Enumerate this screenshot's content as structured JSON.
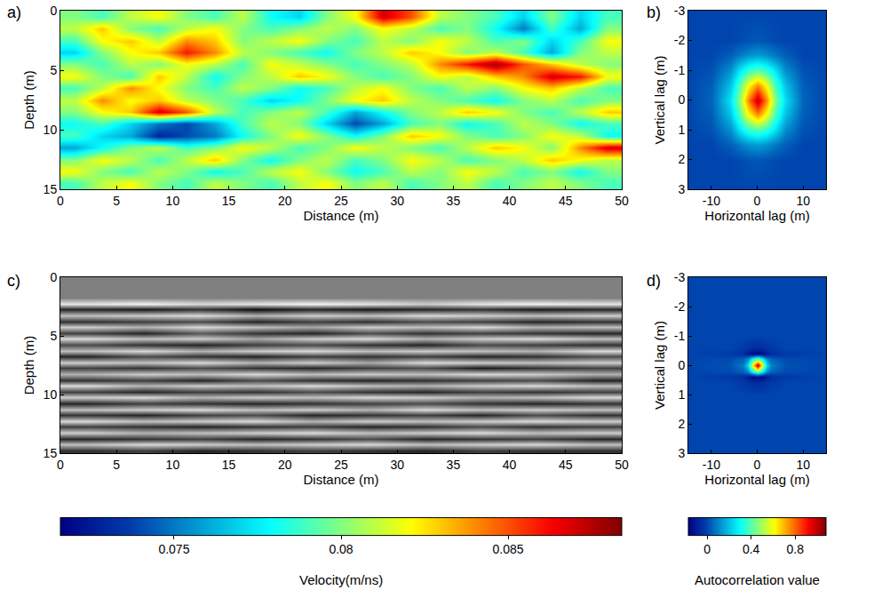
{
  "chart_data": [
    {
      "type": "heatmap",
      "panel_label": "a)",
      "x_label": "Distance (m)",
      "y_label": "Depth (m)",
      "xlim": [
        0,
        50
      ],
      "xticks": [
        0,
        5,
        10,
        15,
        20,
        25,
        30,
        35,
        40,
        45,
        50
      ],
      "ylim": [
        15,
        0
      ],
      "yticks": [
        0,
        5,
        10,
        15
      ],
      "color": "jet",
      "x": [
        1.25,
        3.75,
        6.25,
        8.75,
        11.25,
        13.75,
        16.25,
        18.75,
        21.25,
        23.75,
        26.25,
        28.75,
        31.25,
        33.75,
        36.25,
        38.75,
        41.25,
        43.75,
        46.25,
        48.75
      ],
      "y": [
        0.5,
        1.5,
        2.5,
        3.5,
        4.5,
        5.5,
        6.5,
        7.5,
        8.5,
        9.5,
        10.5,
        11.5,
        12.5,
        13.5,
        14.5
      ],
      "z": [
        [
          0.08,
          0.079,
          0.081,
          0.082,
          0.08,
          0.079,
          0.081,
          0.078,
          0.077,
          0.08,
          0.082,
          0.087,
          0.085,
          0.081,
          0.08,
          0.079,
          0.077,
          0.08,
          0.077,
          0.079
        ],
        [
          0.081,
          0.083,
          0.08,
          0.079,
          0.081,
          0.082,
          0.08,
          0.079,
          0.08,
          0.081,
          0.08,
          0.082,
          0.081,
          0.079,
          0.08,
          0.078,
          0.075,
          0.079,
          0.076,
          0.08
        ],
        [
          0.079,
          0.082,
          0.083,
          0.081,
          0.084,
          0.083,
          0.08,
          0.081,
          0.082,
          0.08,
          0.079,
          0.081,
          0.08,
          0.082,
          0.081,
          0.079,
          0.08,
          0.077,
          0.079,
          0.082
        ],
        [
          0.077,
          0.08,
          0.082,
          0.083,
          0.086,
          0.084,
          0.081,
          0.08,
          0.079,
          0.078,
          0.08,
          0.081,
          0.083,
          0.082,
          0.08,
          0.081,
          0.079,
          0.076,
          0.08,
          0.081
        ],
        [
          0.08,
          0.079,
          0.081,
          0.08,
          0.082,
          0.081,
          0.079,
          0.082,
          0.081,
          0.08,
          0.079,
          0.08,
          0.081,
          0.084,
          0.086,
          0.088,
          0.085,
          0.083,
          0.081,
          0.08
        ],
        [
          0.082,
          0.08,
          0.079,
          0.083,
          0.081,
          0.078,
          0.08,
          0.081,
          0.083,
          0.082,
          0.08,
          0.079,
          0.08,
          0.082,
          0.081,
          0.083,
          0.084,
          0.087,
          0.086,
          0.082
        ],
        [
          0.079,
          0.081,
          0.084,
          0.082,
          0.08,
          0.079,
          0.081,
          0.08,
          0.078,
          0.079,
          0.081,
          0.082,
          0.08,
          0.079,
          0.081,
          0.08,
          0.082,
          0.083,
          0.081,
          0.079
        ],
        [
          0.081,
          0.084,
          0.082,
          0.083,
          0.081,
          0.08,
          0.079,
          0.077,
          0.078,
          0.08,
          0.082,
          0.083,
          0.081,
          0.08,
          0.079,
          0.078,
          0.08,
          0.081,
          0.079,
          0.08
        ],
        [
          0.08,
          0.082,
          0.083,
          0.087,
          0.085,
          0.081,
          0.079,
          0.08,
          0.081,
          0.079,
          0.076,
          0.078,
          0.08,
          0.081,
          0.083,
          0.082,
          0.08,
          0.079,
          0.081,
          0.083
        ],
        [
          0.078,
          0.079,
          0.077,
          0.075,
          0.074,
          0.076,
          0.079,
          0.081,
          0.08,
          0.077,
          0.074,
          0.076,
          0.079,
          0.08,
          0.078,
          0.079,
          0.081,
          0.08,
          0.078,
          0.079
        ],
        [
          0.079,
          0.077,
          0.076,
          0.073,
          0.074,
          0.075,
          0.078,
          0.08,
          0.082,
          0.08,
          0.078,
          0.08,
          0.083,
          0.082,
          0.08,
          0.079,
          0.08,
          0.082,
          0.081,
          0.078
        ],
        [
          0.076,
          0.078,
          0.08,
          0.081,
          0.079,
          0.08,
          0.082,
          0.081,
          0.079,
          0.08,
          0.082,
          0.081,
          0.08,
          0.079,
          0.081,
          0.083,
          0.082,
          0.08,
          0.084,
          0.087
        ],
        [
          0.08,
          0.082,
          0.081,
          0.079,
          0.081,
          0.083,
          0.08,
          0.078,
          0.08,
          0.081,
          0.079,
          0.08,
          0.082,
          0.081,
          0.079,
          0.08,
          0.081,
          0.083,
          0.082,
          0.081
        ],
        [
          0.082,
          0.08,
          0.079,
          0.081,
          0.08,
          0.078,
          0.079,
          0.081,
          0.082,
          0.08,
          0.078,
          0.079,
          0.081,
          0.08,
          0.082,
          0.081,
          0.079,
          0.08,
          0.078,
          0.08
        ],
        [
          0.079,
          0.081,
          0.082,
          0.08,
          0.079,
          0.081,
          0.08,
          0.079,
          0.081,
          0.082,
          0.08,
          0.081,
          0.079,
          0.08,
          0.081,
          0.079,
          0.08,
          0.081,
          0.08,
          0.079
        ]
      ],
      "zlim": [
        0.0716,
        0.0884
      ],
      "colorbar": {
        "title": "Velocity(m/ns)",
        "ticks": [
          0.075,
          0.08,
          0.085
        ]
      }
    },
    {
      "type": "heatmap",
      "panel_label": "b)",
      "x_label": "Horizontal lag (m)",
      "y_label": "Vertical lag (m)",
      "xlim": [
        -15,
        15
      ],
      "xticks": [
        -10,
        0,
        10
      ],
      "ylim": [
        3,
        -3
      ],
      "yticks": [
        -3,
        -2,
        -1,
        0,
        1,
        2,
        3
      ],
      "color": "jet",
      "x": [
        -15,
        -10,
        -6,
        -4,
        -2,
        0,
        2,
        4,
        6,
        10,
        15
      ],
      "y": [
        -3,
        -2,
        -1.5,
        -1,
        -0.5,
        0,
        0.5,
        1,
        1.5,
        2,
        3
      ],
      "z": [
        [
          0,
          0,
          0,
          0,
          0,
          0,
          0,
          0,
          0,
          0,
          0
        ],
        [
          0,
          0,
          0,
          0.01,
          0.02,
          0.03,
          0.02,
          0.01,
          0,
          0,
          0
        ],
        [
          0,
          0,
          0.04,
          0.08,
          0.12,
          0.14,
          0.12,
          0.08,
          0.04,
          0,
          0
        ],
        [
          0,
          0.02,
          0.12,
          0.25,
          0.35,
          0.4,
          0.35,
          0.25,
          0.12,
          0.02,
          0
        ],
        [
          0,
          0.04,
          0.2,
          0.38,
          0.6,
          0.75,
          0.6,
          0.38,
          0.2,
          0.04,
          0
        ],
        [
          0,
          0.05,
          0.25,
          0.45,
          0.75,
          1,
          0.75,
          0.45,
          0.25,
          0.05,
          0
        ],
        [
          0,
          0.04,
          0.2,
          0.38,
          0.6,
          0.75,
          0.6,
          0.38,
          0.2,
          0.04,
          0
        ],
        [
          0,
          0.02,
          0.12,
          0.25,
          0.35,
          0.4,
          0.35,
          0.25,
          0.12,
          0.02,
          0
        ],
        [
          0,
          0,
          0.04,
          0.08,
          0.12,
          0.14,
          0.12,
          0.08,
          0.04,
          0,
          0
        ],
        [
          0,
          0,
          0,
          0.01,
          0.02,
          0.03,
          0.02,
          0.01,
          0,
          0,
          0
        ],
        [
          0,
          0,
          0,
          0,
          0,
          0,
          0,
          0,
          0,
          0,
          0
        ]
      ],
      "zlim": [
        -0.17,
        1.08
      ]
    },
    {
      "type": "heatmap",
      "panel_label": "c)",
      "x_label": "Distance (m)",
      "y_label": "Depth (m)",
      "xlim": [
        0,
        50
      ],
      "xticks": [
        0,
        5,
        10,
        15,
        20,
        25,
        30,
        35,
        40,
        45,
        50
      ],
      "ylim": [
        15,
        0
      ],
      "yticks": [
        0,
        5,
        10,
        15
      ],
      "color": "gray",
      "x": [
        2.5,
        7.5,
        12.5,
        17.5,
        22.5,
        27.5,
        32.5,
        37.5,
        42.5,
        47.5
      ],
      "y": [
        0.25,
        0.75,
        1.25,
        1.75,
        2.25,
        2.75,
        3.25,
        3.75,
        4.25,
        4.75,
        5.25,
        5.75,
        6.25,
        6.75,
        7.25,
        7.75,
        8.25,
        8.75,
        9.25,
        9.75,
        10.25,
        10.75,
        11.25,
        11.75,
        12.25,
        12.75,
        13.25,
        13.75,
        14.25,
        14.75
      ],
      "z": [
        [
          0,
          0,
          0,
          0,
          0,
          0,
          0,
          0,
          0,
          0
        ],
        [
          0,
          0,
          0,
          0,
          0,
          0,
          0,
          0,
          0,
          0
        ],
        [
          0,
          0,
          0,
          0,
          0,
          0,
          0,
          0,
          0,
          0
        ],
        [
          0,
          0,
          0,
          0,
          0,
          0,
          0,
          0,
          0,
          0
        ],
        [
          0.8,
          0.9,
          0.7,
          0.8,
          0.9,
          0.8,
          0.6,
          0.8,
          0.9,
          0.8
        ],
        [
          -0.7,
          -0.8,
          -0.6,
          -0.9,
          -0.7,
          -0.8,
          -0.7,
          -0.6,
          -0.8,
          -0.7
        ],
        [
          0.5,
          0.6,
          0.7,
          0.4,
          0.6,
          0.5,
          0.7,
          0.6,
          0.5,
          0.6
        ],
        [
          -0.6,
          -0.5,
          -0.4,
          -0.7,
          -0.5,
          -0.6,
          -0.4,
          -0.5,
          -0.7,
          -0.6
        ],
        [
          0.6,
          0.4,
          0.7,
          0.5,
          0.3,
          0.6,
          0.5,
          0.7,
          0.4,
          0.5
        ],
        [
          -0.5,
          -0.7,
          -0.3,
          -0.6,
          -0.7,
          -0.4,
          -0.6,
          -0.5,
          -0.6,
          -0.7
        ],
        [
          0.7,
          0.5,
          0.6,
          0.3,
          0.6,
          0.7,
          0.4,
          0.6,
          0.7,
          0.5
        ],
        [
          -0.4,
          -0.6,
          -0.7,
          -0.5,
          -0.4,
          -0.6,
          -0.7,
          -0.4,
          -0.5,
          -0.6
        ],
        [
          0.5,
          0.7,
          0.4,
          0.6,
          0.7,
          0.5,
          0.6,
          0.5,
          0.4,
          0.7
        ],
        [
          -0.7,
          -0.4,
          -0.6,
          -0.7,
          -0.5,
          -0.6,
          -0.5,
          -0.7,
          -0.6,
          -0.4
        ],
        [
          0.6,
          0.5,
          0.7,
          0.4,
          0.6,
          0.3,
          0.7,
          0.6,
          0.5,
          0.6
        ],
        [
          -0.5,
          -0.6,
          -0.4,
          -0.6,
          -0.7,
          -0.5,
          -0.4,
          -0.8,
          -0.6,
          -0.5
        ],
        [
          0.4,
          0.6,
          0.5,
          0.7,
          0.5,
          0.6,
          0.5,
          0.7,
          0.6,
          0.4
        ],
        [
          -0.6,
          -0.5,
          -0.7,
          -0.4,
          -0.6,
          -0.7,
          -0.6,
          -0.5,
          -0.4,
          -0.7
        ],
        [
          0.7,
          0.4,
          0.6,
          0.5,
          0.7,
          0.5,
          0.4,
          0.6,
          0.7,
          0.5
        ],
        [
          -0.5,
          -0.7,
          -0.5,
          -0.6,
          -0.4,
          -0.6,
          -0.7,
          -0.5,
          -0.6,
          -0.5
        ],
        [
          0.6,
          0.7,
          0.4,
          0.6,
          0.5,
          0.7,
          0.6,
          0.4,
          0.5,
          0.7
        ],
        [
          -0.7,
          -0.5,
          -0.6,
          -0.7,
          -0.6,
          -0.5,
          -0.4,
          -0.6,
          -0.7,
          -0.6
        ],
        [
          0.5,
          0.6,
          0.7,
          0.5,
          0.6,
          0.4,
          0.7,
          0.5,
          0.6,
          0.5
        ],
        [
          -0.6,
          -0.7,
          -0.5,
          -0.4,
          -0.7,
          -0.6,
          -0.5,
          -0.7,
          -0.4,
          -0.6
        ],
        [
          0.7,
          0.5,
          0.6,
          0.7,
          0.4,
          0.6,
          0.5,
          0.6,
          0.7,
          0.6
        ],
        [
          -0.5,
          -0.6,
          -0.7,
          -0.6,
          -0.5,
          -0.7,
          -0.6,
          -0.4,
          -0.6,
          -0.5
        ],
        [
          0.6,
          0.4,
          0.5,
          0.6,
          0.7,
          0.5,
          0.6,
          0.7,
          0.5,
          0.6
        ],
        [
          -0.7,
          -0.6,
          -0.5,
          -0.7,
          -0.6,
          -0.4,
          -0.7,
          -0.6,
          -0.5,
          -0.7
        ],
        [
          0.5,
          0.7,
          0.6,
          0.5,
          0.6,
          0.7,
          0.5,
          0.6,
          0.7,
          0.5
        ],
        [
          -0.6,
          -0.5,
          -0.7,
          -0.6,
          -0.5,
          -0.6,
          -0.7,
          -0.5,
          -0.6,
          -0.6
        ]
      ],
      "zlim": [
        -1,
        1
      ]
    },
    {
      "type": "heatmap",
      "panel_label": "d)",
      "x_label": "Horizontal lag (m)",
      "y_label": "Vertical lag (m)",
      "xlim": [
        -15,
        15
      ],
      "xticks": [
        -10,
        0,
        10
      ],
      "ylim": [
        3,
        -3
      ],
      "yticks": [
        -3,
        -2,
        -1,
        0,
        1,
        2,
        3
      ],
      "color": "jet",
      "x": [
        -15,
        -6,
        -3,
        -2,
        -1,
        0,
        1,
        2,
        3,
        6,
        15
      ],
      "y": [
        -3,
        -1,
        -0.6,
        -0.4,
        -0.2,
        0,
        0.2,
        0.4,
        0.6,
        1,
        3
      ],
      "z": [
        [
          0,
          0,
          0,
          0,
          0,
          0,
          0,
          0,
          0,
          0,
          0
        ],
        [
          0,
          0,
          0,
          0,
          0,
          0,
          0,
          0,
          0,
          0,
          0
        ],
        [
          0,
          0,
          -0.02,
          -0.03,
          -0.05,
          -0.05,
          -0.05,
          -0.03,
          -0.02,
          0,
          0
        ],
        [
          0,
          -0.02,
          -0.05,
          -0.1,
          -0.14,
          -0.15,
          -0.14,
          -0.1,
          -0.05,
          -0.02,
          0
        ],
        [
          0,
          0.01,
          0.05,
          0.12,
          0.3,
          0.45,
          0.3,
          0.12,
          0.05,
          0.01,
          0
        ],
        [
          0,
          0.02,
          0.1,
          0.25,
          0.6,
          1,
          0.6,
          0.25,
          0.1,
          0.02,
          0
        ],
        [
          0,
          0.01,
          0.05,
          0.12,
          0.3,
          0.45,
          0.3,
          0.12,
          0.05,
          0.01,
          0
        ],
        [
          0,
          -0.02,
          -0.05,
          -0.1,
          -0.14,
          -0.15,
          -0.14,
          -0.1,
          -0.05,
          -0.02,
          0
        ],
        [
          0,
          0,
          -0.02,
          -0.03,
          -0.05,
          -0.05,
          -0.05,
          -0.03,
          -0.02,
          0,
          0
        ],
        [
          0,
          0,
          0,
          0,
          0,
          0,
          0,
          0,
          0,
          0,
          0
        ],
        [
          0,
          0,
          0,
          0,
          0,
          0,
          0,
          0,
          0,
          0,
          0
        ]
      ],
      "zlim": [
        -0.17,
        1.08
      ],
      "colorbar": {
        "title": "Autocorrelation value",
        "ticks": [
          0,
          0.4,
          0.8
        ]
      }
    }
  ]
}
